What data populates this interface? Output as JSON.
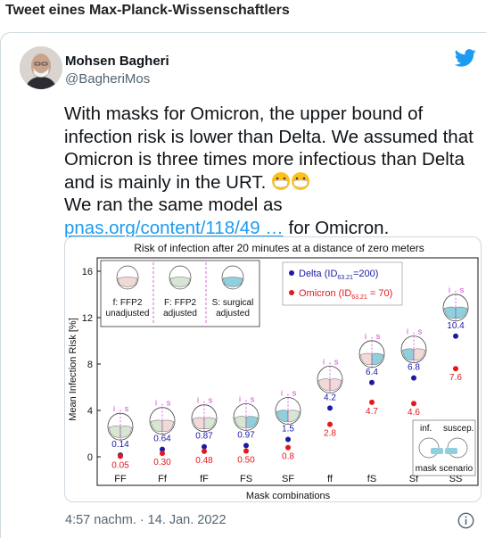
{
  "page_heading": "Tweet eines Max-Planck-Wissenschaftlers",
  "author": {
    "name": "Mohsen Bagheri",
    "handle": "@BagheriMos"
  },
  "tweet": {
    "line1": "With masks for Omicron, the upper bound of infection risk is lower than Delta. We assumed that Omicron is three times more infectious than Delta and is mainly in the URT.",
    "line2_prefix": "We ran the same model as ",
    "link_text": "pnas.org/content/118/49 …",
    "line2_suffix": " for Omicron."
  },
  "timestamp": "4:57 nachm. · 14. Jan. 2022",
  "chart_data": {
    "type": "scatter",
    "title": "Risk of infection after 20 minutes at a distance of zero meters",
    "xlabel": "Mask combinations",
    "ylabel": "Mean Infection Risk [%]",
    "categories": [
      "FF",
      "Ff",
      "fF",
      "FS",
      "SF",
      "ff",
      "fS",
      "Sf",
      "SS"
    ],
    "ylim": [
      0,
      16
    ],
    "yticks": [
      0,
      4,
      8,
      12,
      16
    ],
    "series": [
      {
        "name": "Delta",
        "legend_main": "Delta (ID",
        "legend_sub": "63.21",
        "legend_tail": "=200)",
        "color": "#1a1aa6",
        "values": [
          0.14,
          0.64,
          0.87,
          0.97,
          1.5,
          4.2,
          6.4,
          6.8,
          10.4
        ],
        "labels": [
          "0.14",
          "0.64",
          "0.87",
          "0.97",
          "1.5",
          "4.2",
          "6.4",
          "6.8",
          "10.4"
        ]
      },
      {
        "name": "Omicron",
        "legend_main": "Omicron (ID",
        "legend_sub": "63.21",
        "legend_tail": " = 70)",
        "color": "#e3181c",
        "values": [
          0.05,
          0.3,
          0.48,
          0.5,
          0.8,
          2.8,
          4.7,
          4.6,
          7.6
        ],
        "labels": [
          "0.05",
          "0.30",
          "0.48",
          "0.50",
          "0.8",
          "2.8",
          "4.7",
          "4.6",
          "7.6"
        ]
      }
    ],
    "mask_legend": [
      {
        "lines": [
          "f: FFP2",
          "unadjusted"
        ]
      },
      {
        "lines": [
          "F: FFP2",
          "adjusted"
        ]
      },
      {
        "lines": [
          "S: surgical",
          "adjusted"
        ]
      }
    ],
    "face_marks": {
      "infectious": "i",
      "susceptible": "s"
    },
    "scenario_box": {
      "inf_label": "inf.",
      "suscep_label": "suscep.",
      "caption": "mask scenario"
    }
  }
}
